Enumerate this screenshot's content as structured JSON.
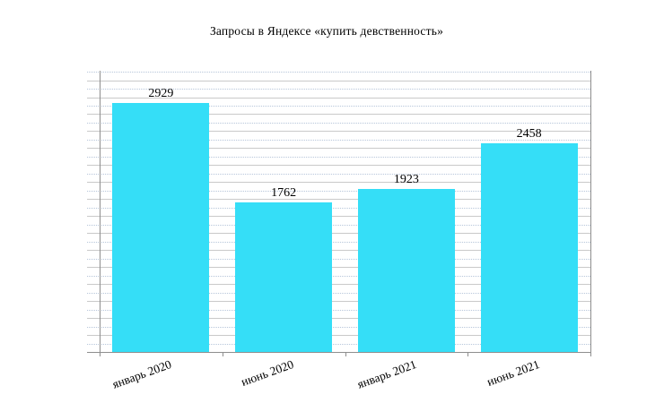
{
  "chart_data": {
    "type": "bar",
    "title": "Запросы в Яндексе «купить девственность»",
    "categories": [
      "январь 2020",
      "июнь 2020",
      "январь 2021",
      "июнь 2021"
    ],
    "values": [
      2929,
      1762,
      1923,
      2458
    ],
    "value_labels": [
      "2929",
      "1762",
      "1923",
      "2458"
    ],
    "xlabel": "",
    "ylabel": "",
    "ylim": [
      0,
      3300
    ],
    "minor_gridline_step": 100,
    "major_gridline_step": 200,
    "grid": "on",
    "legend": "none",
    "y_tick_labels_visible": false,
    "colors": {
      "bar_fill": "#35DEF7",
      "major_gridline": "#c9c9c9",
      "minor_gridline": "#b7c6da",
      "axis_line": "#8e8e8e",
      "text": "#000000",
      "background": "#ffffff"
    }
  }
}
